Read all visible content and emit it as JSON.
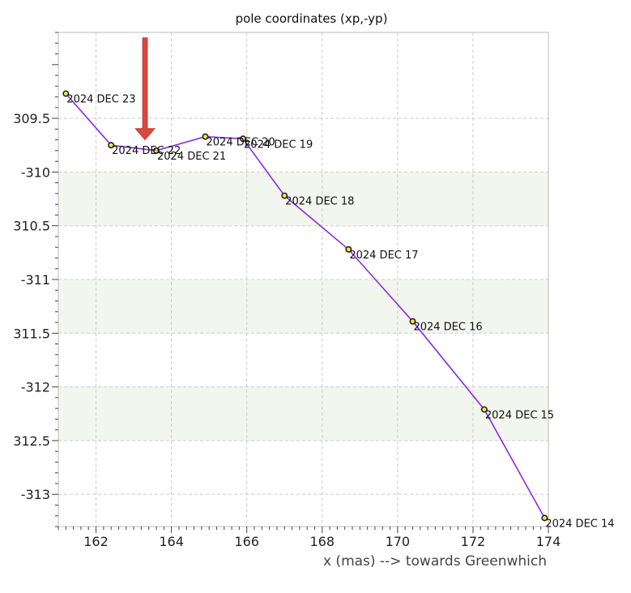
{
  "chart_data": {
    "type": "line",
    "title": "pole coordinates (xp,-yp)",
    "xlabel": "x (mas) --> towards Greenwhich",
    "ylabel": "",
    "xlim": [
      161.0,
      174.0
    ],
    "ylim": [
      -313.3,
      -308.7
    ],
    "x_ticks": [
      162,
      164,
      166,
      168,
      170,
      172,
      174
    ],
    "y_ticks": [
      {
        "value": -309.5,
        "label": "309.5"
      },
      {
        "value": -310,
        "label": "-310"
      },
      {
        "value": -310.5,
        "label": "310.5"
      },
      {
        "value": -311,
        "label": "-311"
      },
      {
        "value": -311.5,
        "label": "311.5"
      },
      {
        "value": -312,
        "label": "-312"
      },
      {
        "value": -312.5,
        "label": "312.5"
      },
      {
        "value": -313,
        "label": "-313"
      }
    ],
    "grid": true,
    "shaded_bands": [
      [
        -310.5,
        -310.0
      ],
      [
        -311.5,
        -311.0
      ],
      [
        -312.5,
        -312.0
      ]
    ],
    "colors": {
      "line": "#8a2be2",
      "marker_fill": "#f2e84a",
      "marker_edge": "#222222",
      "band": "#f3f5ef",
      "grid": "#cccccc",
      "arrow": "#d9473f"
    },
    "arrow": {
      "x": 163.3,
      "y_from": -308.75,
      "y_to": -309.7
    },
    "points": [
      {
        "x": 161.2,
        "y": -309.27,
        "label": "2024 DEC 23"
      },
      {
        "x": 162.4,
        "y": -309.75,
        "label": "2024 DEC 22"
      },
      {
        "x": 163.6,
        "y": -309.8,
        "label": "2024 DEC 21"
      },
      {
        "x": 164.9,
        "y": -309.67,
        "label": "2024 DEC 20"
      },
      {
        "x": 165.9,
        "y": -309.69,
        "label": "2024 DEC 19"
      },
      {
        "x": 167.0,
        "y": -310.22,
        "label": "2024 DEC 18"
      },
      {
        "x": 168.7,
        "y": -310.72,
        "label": "2024 DEC 17"
      },
      {
        "x": 170.4,
        "y": -311.39,
        "label": "2024 DEC 16"
      },
      {
        "x": 172.3,
        "y": -312.21,
        "label": "2024 DEC 15"
      },
      {
        "x": 173.9,
        "y": -313.22,
        "label": "2024 DEC 14"
      }
    ]
  }
}
